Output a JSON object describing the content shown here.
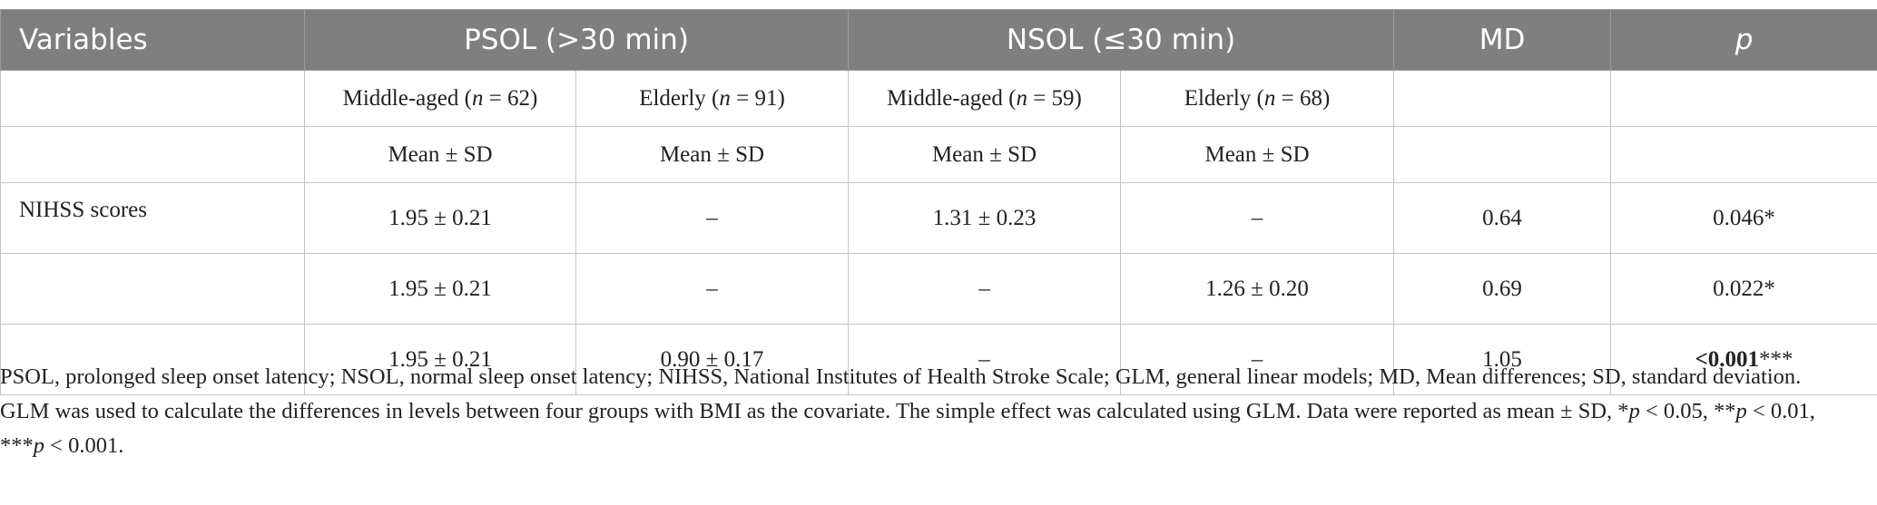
{
  "table": {
    "header": [
      "Variables",
      "PSOL (>30 min)",
      "NSOL (≤30 min)",
      "MD",
      "p"
    ],
    "subheader": [
      [
        "Middle-aged (",
        {
          "italic": "n"
        },
        " = 62)"
      ],
      [
        "Elderly (",
        {
          "italic": "n"
        },
        " = 91)"
      ],
      [
        "Middle-aged (",
        {
          "italic": "n"
        },
        " = 59)"
      ],
      [
        "Elderly (",
        {
          "italic": "n"
        },
        " = 68)"
      ]
    ],
    "stat_row": [
      "Mean ± SD",
      "Mean ± SD",
      "Mean ± SD",
      "Mean ± SD"
    ],
    "rows": [
      [
        "NIHSS scores",
        "1.95 ± 0.21",
        "–",
        "1.31 ± 0.23",
        "–",
        "0.64",
        "0.046*"
      ],
      [
        null,
        "1.95 ± 0.21",
        "–",
        "–",
        "1.26 ± 0.20",
        "0.69",
        "0.022*"
      ],
      [
        null,
        "1.95 ± 0.21",
        "0.90 ± 0.17",
        "–",
        "–",
        "1.05",
        [
          {
            "bold": "<0.001"
          },
          "***"
        ]
      ]
    ]
  },
  "footnotes": [
    "PSOL, prolonged sleep onset latency; NSOL, normal sleep onset latency; NIHSS, National Institutes of Health Stroke Scale; GLM, general linear models; MD, Mean differences; SD, standard deviation.",
    [
      "GLM was used to calculate the differences in levels between four groups with BMI as the covariate. The simple effect was calculated using GLM. Data were reported as mean ± SD, *",
      {
        "italic": "p"
      },
      " < 0.05, **",
      {
        "italic": "p"
      },
      " < 0.01, ***",
      {
        "italic": "p"
      },
      " < 0.001."
    ]
  ]
}
